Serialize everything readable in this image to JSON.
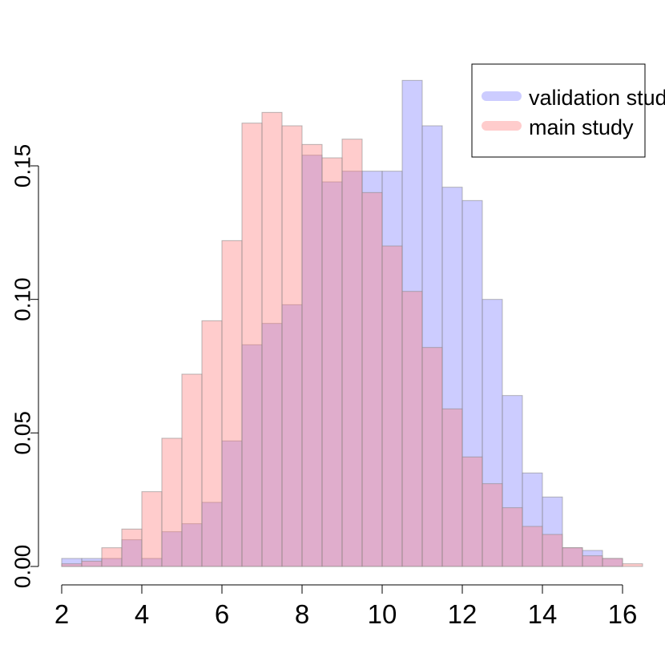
{
  "chart_data": {
    "type": "histogram",
    "bin_edges": [
      2.0,
      2.5,
      3.0,
      3.5,
      4.0,
      4.5,
      5.0,
      5.5,
      6.0,
      6.5,
      7.0,
      7.5,
      8.0,
      8.5,
      9.0,
      9.5,
      10.0,
      10.5,
      11.0,
      11.5,
      12.0,
      12.5,
      13.0,
      13.5,
      14.0,
      14.5,
      15.0,
      15.5,
      16.0,
      16.5
    ],
    "series": [
      {
        "name": "validation study",
        "color": "#8080ff",
        "opacity": 0.4,
        "values": [
          0.003,
          0.003,
          0.003,
          0.01,
          0.003,
          0.013,
          0.016,
          0.024,
          0.047,
          0.083,
          0.091,
          0.098,
          0.154,
          0.144,
          0.148,
          0.148,
          0.148,
          0.182,
          0.165,
          0.142,
          0.137,
          0.1,
          0.064,
          0.035,
          0.026,
          0.007,
          0.006,
          0.003,
          0.0
        ]
      },
      {
        "name": "main study",
        "color": "#ff8080",
        "opacity": 0.4,
        "values": [
          0.001,
          0.002,
          0.007,
          0.014,
          0.028,
          0.048,
          0.072,
          0.092,
          0.122,
          0.166,
          0.17,
          0.165,
          0.158,
          0.153,
          0.16,
          0.14,
          0.12,
          0.103,
          0.082,
          0.059,
          0.041,
          0.031,
          0.022,
          0.015,
          0.012,
          0.007,
          0.004,
          0.003,
          0.001
        ]
      }
    ],
    "x_ticks": [
      "2",
      "4",
      "6",
      "8",
      "10",
      "12",
      "14",
      "16"
    ],
    "x_tick_values": [
      2,
      4,
      6,
      8,
      10,
      12,
      14,
      16
    ],
    "y_ticks": [
      "0.00",
      "0.05",
      "0.10",
      "0.15"
    ],
    "y_tick_values": [
      0.0,
      0.05,
      0.1,
      0.15
    ],
    "xlim": [
      2,
      16.5
    ],
    "ylim": [
      0,
      0.182
    ],
    "legend_position": "top-right",
    "legend": [
      "validation study",
      "main study"
    ]
  }
}
